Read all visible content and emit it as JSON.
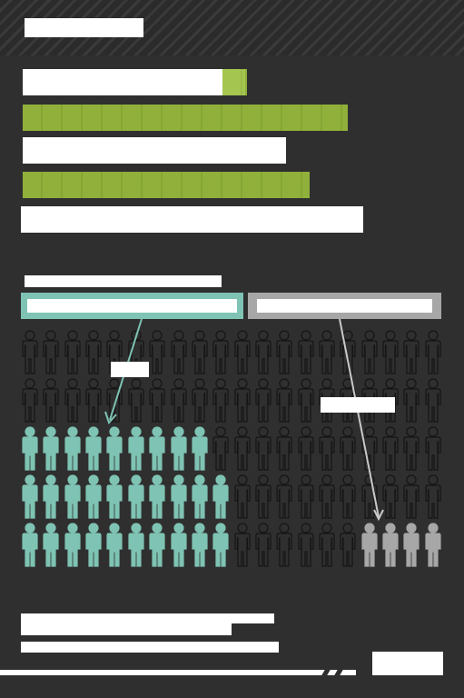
{
  "header": {
    "tag": ""
  },
  "headline": {
    "lines": [
      "",
      "",
      "",
      "",
      ""
    ]
  },
  "subtitle": "",
  "legend": {
    "left_label": "",
    "right_label": ""
  },
  "callouts": {
    "left": "",
    "right": ""
  },
  "footer": {
    "source": "",
    "note": "",
    "logo": ""
  },
  "colors": {
    "background": "#2f2f2f",
    "teal": "#7ec3b3",
    "gray": "#a7a7a7",
    "outline": "#151515",
    "accent_green": "#9bbf3c",
    "white": "#ffffff"
  },
  "figure_grid": {
    "rows": 5,
    "per_row": 20,
    "teal_counts": [
      0,
      0,
      9,
      10,
      10
    ],
    "gray_counts": [
      0,
      0,
      0,
      0,
      4
    ]
  }
}
